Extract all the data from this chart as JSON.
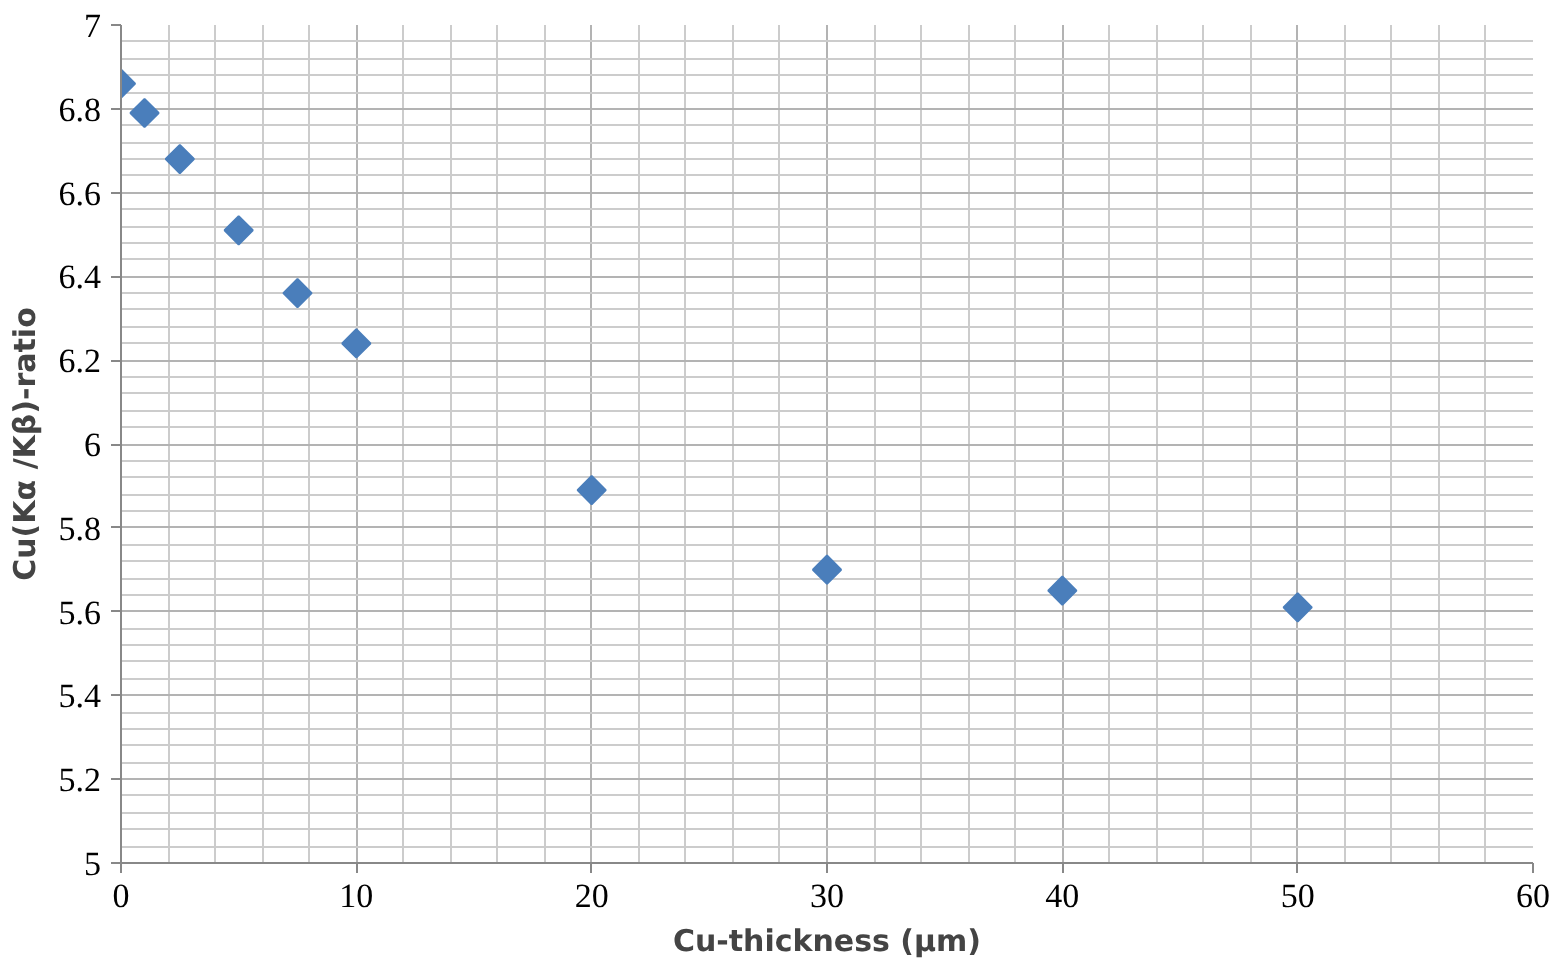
{
  "chart_data": {
    "type": "scatter",
    "xlabel": "Cu-thickness (µm)",
    "ylabel": "Cu(Kα /Kβ)-ratio",
    "x": [
      0,
      1,
      2.5,
      5,
      7.5,
      10,
      20,
      30,
      40,
      50
    ],
    "series": [
      {
        "color": "#4a7ebb",
        "values": [
          6.86,
          6.79,
          6.68,
          6.51,
          6.36,
          6.24,
          5.89,
          5.7,
          5.65,
          5.61
        ]
      }
    ],
    "xlim": [
      0,
      60
    ],
    "xticks": [
      0,
      10,
      20,
      30,
      40,
      50,
      60
    ],
    "ylim": [
      5,
      7
    ],
    "yticks": [
      5,
      5.2,
      5.4,
      5.6,
      5.8,
      6,
      6.2,
      6.4,
      6.6,
      6.8,
      7
    ],
    "grid": true,
    "marker": "diamond"
  }
}
